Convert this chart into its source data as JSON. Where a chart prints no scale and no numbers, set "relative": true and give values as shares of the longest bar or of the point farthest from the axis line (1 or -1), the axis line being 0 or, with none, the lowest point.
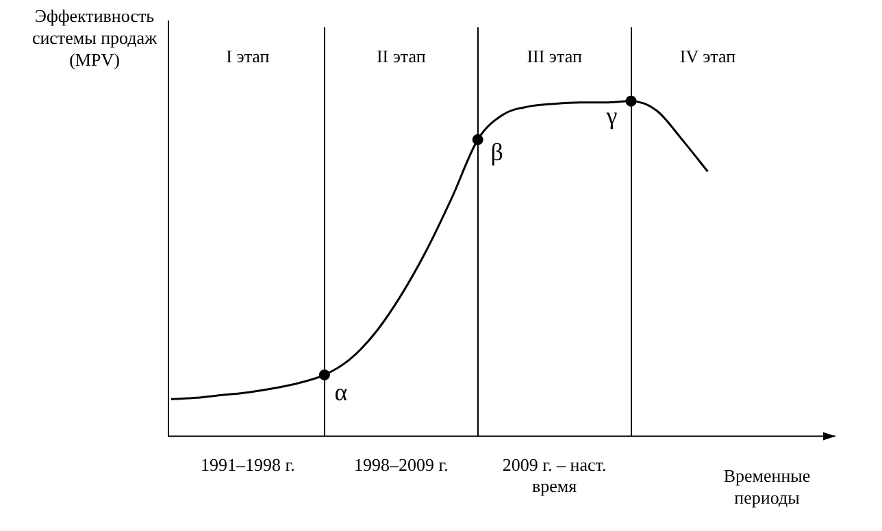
{
  "chart_data": {
    "type": "line",
    "relative": true,
    "xlabel": "Временные периоды",
    "ylabel": "Эффективность системы продаж (MPV)",
    "categories": [
      null,
      null,
      null,
      "1991–1998 г.",
      null,
      null,
      null,
      null,
      null,
      "1998–2009 г.",
      null,
      null,
      null,
      null,
      null,
      "2009 г. – наст. время",
      null,
      null,
      null,
      null,
      null,
      null,
      null,
      null,
      null,
      null,
      null
    ],
    "series": [
      {
        "color": "#000000",
        "values": [
          0.111,
          0.115,
          0.123,
          0.131,
          0.143,
          0.159,
          0.183,
          0.23,
          0.31,
          0.421,
          0.556,
          0.714,
          0.885,
          0.96,
          0.984,
          0.992,
          0.996,
          0.996,
          1,
          0.972,
          0.885,
          0.79,
          null,
          null,
          null,
          null,
          null
        ]
      }
    ],
    "annotations": [
      "I этап",
      "II этап",
      "III этап",
      "IV этап",
      "α",
      "β",
      "γ"
    ],
    "line_style": "solid",
    "grid": "x",
    "legend": false
  }
}
